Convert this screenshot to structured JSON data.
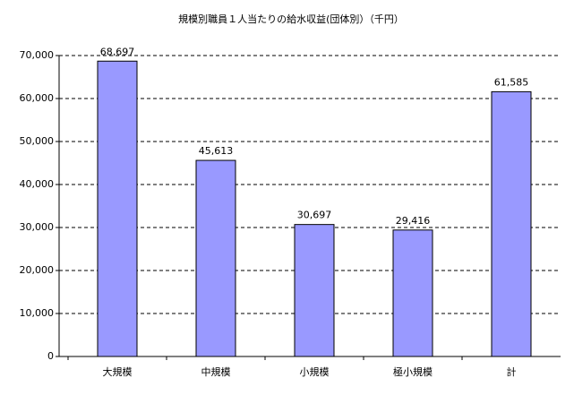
{
  "chart_data": {
    "type": "bar",
    "title": "規模別職員１人当たりの給水収益(団体別）（千円）",
    "categories": [
      "大規模",
      "中規模",
      "小規模",
      "極小規模",
      "計"
    ],
    "values": [
      68697,
      45613,
      30697,
      29416,
      61585
    ],
    "value_labels": [
      "68,697",
      "45,613",
      "30,697",
      "29,416",
      "61,585"
    ],
    "color": "#9999ff",
    "ylim": [
      0,
      70000
    ],
    "yticks": [
      0,
      {
        "value": 10000,
        "label": "10,000"
      },
      {
        "value": 20000,
        "label": "20,000"
      },
      {
        "value": 30000,
        "label": "30,000"
      },
      {
        "value": 40000,
        "label": "40,000"
      },
      {
        "value": 50000,
        "label": "50,000"
      },
      {
        "value": 60000,
        "label": "60,000"
      },
      {
        "value": 70000,
        "label": "70,000"
      }
    ],
    "grid": true
  }
}
